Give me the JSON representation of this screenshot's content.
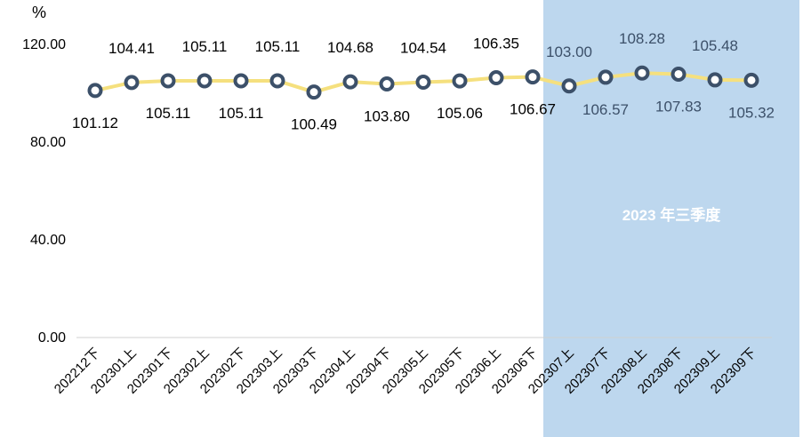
{
  "chart_data": {
    "type": "line",
    "unit_label": "%",
    "categories": [
      "202212下",
      "202301上",
      "202301下",
      "202302上",
      "202302下",
      "202303上",
      "202303下",
      "202304上",
      "202304下",
      "202305上",
      "202305下",
      "202306上",
      "202306下",
      "202307上",
      "202307下",
      "202308上",
      "202308下",
      "202309上",
      "202309下"
    ],
    "series": [
      {
        "values": [
          101.12,
          104.41,
          105.11,
          105.11,
          105.11,
          105.11,
          100.49,
          104.68,
          103.8,
          104.54,
          105.06,
          106.35,
          106.67,
          103.0,
          106.57,
          108.28,
          107.83,
          105.48,
          105.32
        ]
      }
    ],
    "data_label_positions": [
      "below",
      "above",
      "below",
      "above",
      "below",
      "above",
      "below",
      "above",
      "below",
      "above",
      "below",
      "above",
      "below",
      "above",
      "below",
      "above",
      "below",
      "above",
      "below"
    ],
    "yticks": [
      "0.00",
      "40.00",
      "80.00",
      "120.00"
    ],
    "ylim": [
      0,
      120
    ],
    "grid": false,
    "highlight": {
      "label": "2023 年三季度",
      "from_category": "202307上",
      "to_category": "202309下",
      "color": "#bdd7ee"
    },
    "colors": {
      "line": "#f5e07e",
      "marker_stroke": "#3c5069",
      "marker_fill": "#ffffff",
      "label": "#000000",
      "label_highlight": "#3c5069",
      "axis": "#d0d0d0"
    }
  }
}
